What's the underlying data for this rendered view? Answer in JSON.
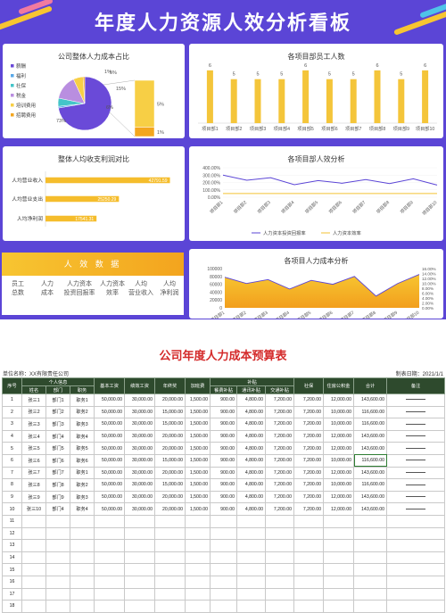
{
  "dashboard": {
    "title": "年度人力资源人效分析看板",
    "panels": {
      "cost_share": "公司整体人力成本占比",
      "staff_count": "各项目部员工人数",
      "income_compare": "整体人均收支利润对比",
      "efficiency": "各项目部人效分析",
      "cost_analysis": "各项目人力成本分析"
    },
    "kpi": {
      "header": "人 效 数 据",
      "columns": [
        [
          "员工",
          "总数"
        ],
        [
          "人力",
          "成本"
        ],
        [
          "人力资本",
          "投资回报率"
        ],
        [
          "人力资本",
          "效率"
        ],
        [
          "人均",
          "营业收入"
        ],
        [
          "人均",
          "净利润"
        ]
      ]
    }
  },
  "chart_data": [
    {
      "type": "pie",
      "title": "公司整体人力成本占比",
      "labels": [
        "薪酬",
        "福利",
        "社保",
        "税金",
        "培训费用",
        "招聘费用"
      ],
      "values": [
        73,
        1,
        5,
        15,
        6,
        1
      ],
      "colors": [
        "#6a4ad8",
        "#5aa9e8",
        "#44c5c9",
        "#b98ee0",
        "#f7cf45",
        "#f3a61f"
      ],
      "percent_labels": [
        "73%",
        "1%",
        "5%",
        "15%",
        "6%",
        "1%"
      ],
      "bar_of_pie": {
        "labels": [
          "5%",
          "1%"
        ],
        "values": [
          5,
          1
        ]
      }
    },
    {
      "type": "bar",
      "title": "各项目部员工人数",
      "categories": [
        "项目部1",
        "项目部2",
        "项目部3",
        "项目部4",
        "项目部5",
        "项目部6",
        "项目部7",
        "项目部8",
        "项目部9",
        "项目部10"
      ],
      "values": [
        6,
        5,
        5,
        5,
        6,
        5,
        5,
        6,
        5,
        6
      ],
      "ylim": [
        0,
        7
      ]
    },
    {
      "type": "bar",
      "title": "整体人均收支利润对比",
      "orientation": "horizontal",
      "categories": [
        "人均营业收入",
        "人均营业支出",
        "人均净利润"
      ],
      "values": [
        42791.59,
        25250.29,
        17541.31
      ],
      "value_labels": [
        "42791.59",
        "25250.29",
        "17541.31"
      ],
      "xlim": [
        0,
        46000
      ]
    },
    {
      "type": "line",
      "title": "各项目部人效分析",
      "categories": [
        "项目部1",
        "项目部2",
        "项目部3",
        "项目部4",
        "项目部5",
        "项目部6",
        "项目部7",
        "项目部8",
        "项目部9",
        "项目部10"
      ],
      "yticks": [
        "0.00%",
        "100.00%",
        "200.00%",
        "300.00%",
        "400.00%"
      ],
      "ylim": [
        0,
        400
      ],
      "series": [
        {
          "name": "人力资本投资回报率",
          "values": [
            300,
            230,
            265,
            170,
            225,
            190,
            240,
            185,
            250,
            165
          ],
          "color": "#5b45d6"
        },
        {
          "name": "人力资本效率",
          "values": [
            50,
            50,
            50,
            50,
            50,
            50,
            50,
            50,
            50,
            50
          ],
          "color": "#f3c233"
        }
      ]
    },
    {
      "type": "area",
      "title": "各项目人力成本分析",
      "categories": [
        "项目部1",
        "项目部2",
        "项目部3",
        "项目部4",
        "项目部5",
        "项目部6",
        "项目部7",
        "项目部8",
        "项目部9",
        "项目部10"
      ],
      "yticks": [
        "0",
        "20000",
        "40000",
        "60000",
        "80000",
        "100000"
      ],
      "y2ticks": [
        "0.00%",
        "2.00%",
        "4.00%",
        "6.00%",
        "8.00%",
        "10.00%",
        "12.00%",
        "14.00%",
        "16.00%"
      ],
      "ylim": [
        0,
        100000
      ],
      "values": [
        78000,
        62000,
        72000,
        48000,
        70000,
        60000,
        80000,
        30000,
        62000,
        85000
      ]
    }
  ],
  "table": {
    "title": "公司年度人力成本预算表",
    "dept_label": "单位名称：XX有限责任公司",
    "date_label": "制表日期：2021/1/1",
    "headers": {
      "seq": "序号",
      "personal": "个人信息",
      "name": "姓名",
      "dept": "部门",
      "post": "职务",
      "base": "基本工资",
      "perf": "绩效工资",
      "bonus": "年终奖",
      "overtime": "加班费",
      "subsidy": "补贴",
      "meal": "餐费补贴",
      "comm": "通讯补贴",
      "transport": "交通补贴",
      "social": "社保",
      "fund": "住房公积金",
      "total": "合计",
      "remark": "备注"
    },
    "rows": [
      [
        "1",
        "张三1",
        "部门1",
        "职务1",
        "50,000.00",
        "30,000.00",
        "20,000.00",
        "1,500.00",
        "900.00",
        "4,800.00",
        "7,200.00",
        "7,200.00",
        "12,000.00",
        "143,600.00"
      ],
      [
        "2",
        "张三2",
        "部门2",
        "职务2",
        "50,000.00",
        "30,000.00",
        "15,000.00",
        "1,500.00",
        "900.00",
        "4,800.00",
        "7,200.00",
        "7,200.00",
        "10,000.00",
        "116,600.00"
      ],
      [
        "3",
        "张三3",
        "部门3",
        "职务3",
        "50,000.00",
        "30,000.00",
        "15,000.00",
        "1,500.00",
        "900.00",
        "4,800.00",
        "7,200.00",
        "7,200.00",
        "10,000.00",
        "116,600.00"
      ],
      [
        "4",
        "张三4",
        "部门4",
        "职务4",
        "50,000.00",
        "30,000.00",
        "20,000.00",
        "1,500.00",
        "900.00",
        "4,800.00",
        "7,200.00",
        "7,200.00",
        "12,000.00",
        "143,600.00"
      ],
      [
        "5",
        "张三5",
        "部门5",
        "职务5",
        "50,000.00",
        "30,000.00",
        "20,000.00",
        "1,500.00",
        "900.00",
        "4,800.00",
        "7,200.00",
        "7,200.00",
        "12,000.00",
        "143,600.00"
      ],
      [
        "6",
        "张三6",
        "部门6",
        "职务6",
        "50,000.00",
        "30,000.00",
        "15,000.00",
        "1,500.00",
        "900.00",
        "4,800.00",
        "7,200.00",
        "7,200.00",
        "10,000.00",
        "116,600.00"
      ],
      [
        "7",
        "张三7",
        "部门7",
        "职务1",
        "50,000.00",
        "30,000.00",
        "20,000.00",
        "1,500.00",
        "900.00",
        "4,800.00",
        "7,200.00",
        "7,200.00",
        "12,000.00",
        "143,600.00"
      ],
      [
        "8",
        "张三8",
        "部门8",
        "职务2",
        "50,000.00",
        "30,000.00",
        "15,000.00",
        "1,500.00",
        "900.00",
        "4,800.00",
        "7,200.00",
        "7,200.00",
        "10,000.00",
        "116,600.00"
      ],
      [
        "9",
        "张三9",
        "部门9",
        "职务3",
        "50,000.00",
        "30,000.00",
        "20,000.00",
        "1,500.00",
        "900.00",
        "4,800.00",
        "7,200.00",
        "7,200.00",
        "12,000.00",
        "143,600.00"
      ],
      [
        "10",
        "张三10",
        "部门4",
        "职务4",
        "50,000.00",
        "30,000.00",
        "20,000.00",
        "1,500.00",
        "900.00",
        "4,800.00",
        "7,200.00",
        "7,200.00",
        "12,000.00",
        "143,600.00"
      ]
    ],
    "empty_rows": [
      "11",
      "12",
      "13",
      "14",
      "15",
      "16",
      "17",
      "18"
    ]
  }
}
